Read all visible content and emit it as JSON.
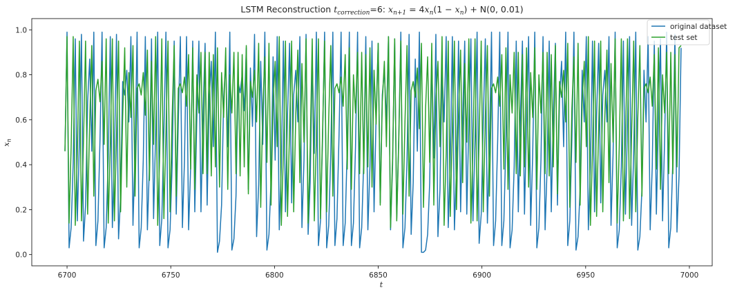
{
  "chart_data": {
    "type": "line",
    "title": {
      "prefix": "LSTM Reconstruction ",
      "t": "t",
      "subscript": "correction",
      "eq_value": "=6: ",
      "x": "x",
      "sub_n1": "n+1",
      "mid": " = 4",
      "x2": "x",
      "sub_n": "n",
      "paren_open": "(1 − ",
      "x3": "x",
      "sub_n2": "n",
      "tail": ") + N(0, 0.01)"
    },
    "xlabel": "t",
    "ylabel": {
      "base": "x",
      "sub": "n"
    },
    "xlim": [
      6683,
      7011
    ],
    "ylim": [
      -0.05,
      1.05
    ],
    "xticks": [
      6700,
      6750,
      6800,
      6850,
      6900,
      6950,
      7000
    ],
    "yticks": [
      "0.0",
      "0.2",
      "0.4",
      "0.6",
      "0.8",
      "1.0"
    ],
    "yticks_values": [
      0.0,
      0.2,
      0.4,
      0.6,
      0.8,
      1.0
    ],
    "legend_position": "top-right",
    "x": {
      "start": 6699,
      "end": 6996
    },
    "series": [
      {
        "name": "original dataset",
        "color": "#1f77b4",
        "values": [
          0.46,
          0.99,
          0.03,
          0.12,
          0.41,
          0.96,
          0.15,
          0.5,
          0.98,
          0.06,
          0.22,
          0.68,
          0.87,
          0.46,
          0.99,
          0.04,
          0.15,
          0.51,
          0.99,
          0.03,
          0.12,
          0.43,
          0.97,
          0.12,
          0.43,
          0.98,
          0.07,
          0.26,
          0.77,
          0.71,
          0.82,
          0.59,
          0.97,
          0.13,
          0.45,
          0.99,
          0.03,
          0.12,
          0.42,
          0.97,
          0.11,
          0.4,
          0.96,
          0.16,
          0.54,
          0.99,
          0.04,
          0.16,
          0.54,
          0.99,
          0.03,
          0.11,
          0.39,
          0.95,
          0.18,
          0.59,
          0.97,
          0.12,
          0.42,
          0.97,
          0.11,
          0.39,
          0.95,
          0.19,
          0.61,
          0.95,
          0.19,
          0.62,
          0.94,
          0.22,
          0.69,
          0.86,
          0.48,
          0.99,
          0.01,
          0.06,
          0.22,
          0.69,
          0.86,
          0.48,
          0.99,
          0.02,
          0.07,
          0.26,
          0.77,
          0.72,
          0.8,
          0.64,
          0.92,
          0.29,
          0.83,
          0.57,
          0.98,
          0.08,
          0.31,
          0.86,
          0.49,
          0.99,
          0.02,
          0.09,
          0.33,
          0.88,
          0.42,
          0.97,
          0.11,
          0.39,
          0.95,
          0.19,
          0.62,
          0.94,
          0.23,
          0.71,
          0.82,
          0.59,
          0.97,
          0.12,
          0.42,
          0.98,
          0.09,
          0.32,
          0.87,
          0.45,
          0.99,
          0.04,
          0.15,
          0.51,
          0.99,
          0.03,
          0.13,
          0.45,
          0.99,
          0.04,
          0.16,
          0.53,
          0.99,
          0.04,
          0.14,
          0.48,
          0.99,
          0.04,
          0.14,
          0.48,
          0.99,
          0.03,
          0.12,
          0.42,
          0.97,
          0.11,
          0.39,
          0.95,
          0.19,
          0.62,
          0.94,
          0.23,
          0.71,
          0.82,
          0.59,
          0.97,
          0.11,
          0.4,
          0.96,
          0.16,
          0.53,
          0.99,
          0.03,
          0.12,
          0.42,
          0.98,
          0.09,
          0.32,
          0.87,
          0.46,
          0.99,
          0.01,
          0.01,
          0.02,
          0.09,
          0.32,
          0.88,
          0.43,
          0.98,
          0.08,
          0.29,
          0.82,
          0.59,
          0.97,
          0.12,
          0.42,
          0.97,
          0.11,
          0.39,
          0.95,
          0.19,
          0.61,
          0.95,
          0.18,
          0.59,
          0.96,
          0.15,
          0.51,
          0.99,
          0.05,
          0.18,
          0.59,
          0.96,
          0.14,
          0.48,
          0.99,
          0.04,
          0.15,
          0.51,
          0.99,
          0.04,
          0.15,
          0.51,
          0.99,
          0.03,
          0.11,
          0.39,
          0.95,
          0.19,
          0.61,
          0.95,
          0.18,
          0.59,
          0.97,
          0.13,
          0.45,
          0.99,
          0.03,
          0.12,
          0.42,
          0.97,
          0.11,
          0.39,
          0.95,
          0.19,
          0.62,
          0.94,
          0.22,
          0.69,
          0.86,
          0.48,
          0.99,
          0.04,
          0.15,
          0.51,
          0.99,
          0.02,
          0.08,
          0.29,
          0.82,
          0.59,
          0.97,
          0.11,
          0.39,
          0.95,
          0.19,
          0.62,
          0.94,
          0.23,
          0.71,
          0.82,
          0.59,
          0.97,
          0.13,
          0.45,
          0.99,
          0.03,
          0.11,
          0.39,
          0.95,
          0.18,
          0.59,
          0.97,
          0.13,
          0.45,
          0.99,
          0.02,
          0.08,
          0.29,
          0.82,
          0.59,
          0.97,
          0.11,
          0.39,
          0.95,
          0.18,
          0.59,
          0.96,
          0.15,
          0.51,
          0.99,
          0.03,
          0.12,
          0.42,
          0.98,
          0.1,
          0.35,
          0.92
        ]
      },
      {
        "name": "test set",
        "color": "#2ca02c",
        "values": [
          0.46,
          0.97,
          0.14,
          0.48,
          0.97,
          0.13,
          0.45,
          0.95,
          0.15,
          0.51,
          0.95,
          0.18,
          0.59,
          0.93,
          0.26,
          0.73,
          0.78,
          0.68,
          0.86,
          0.49,
          0.96,
          0.14,
          0.48,
          0.96,
          0.15,
          0.52,
          0.95,
          0.19,
          0.61,
          0.92,
          0.3,
          0.81,
          0.61,
          0.93,
          0.26,
          0.74,
          0.76,
          0.71,
          0.81,
          0.62,
          0.91,
          0.33,
          0.86,
          0.49,
          0.97,
          0.13,
          0.46,
          0.96,
          0.16,
          0.54,
          0.95,
          0.19,
          0.61,
          0.93,
          0.26,
          0.74,
          0.76,
          0.72,
          0.79,
          0.66,
          0.89,
          0.38,
          0.92,
          0.29,
          0.8,
          0.63,
          0.9,
          0.36,
          0.9,
          0.36,
          0.9,
          0.35,
          0.89,
          0.39,
          0.92,
          0.3,
          0.81,
          0.61,
          0.92,
          0.29,
          0.8,
          0.63,
          0.9,
          0.36,
          0.9,
          0.35,
          0.89,
          0.39,
          0.93,
          0.27,
          0.77,
          0.7,
          0.82,
          0.59,
          0.94,
          0.21,
          0.65,
          0.88,
          0.41,
          0.94,
          0.22,
          0.68,
          0.86,
          0.48,
          0.97,
          0.13,
          0.45,
          0.95,
          0.17,
          0.56,
          0.95,
          0.19,
          0.62,
          0.91,
          0.32,
          0.85,
          0.5,
          0.96,
          0.14,
          0.48,
          0.96,
          0.15,
          0.51,
          0.96,
          0.16,
          0.54,
          0.95,
          0.19,
          0.61,
          0.93,
          0.26,
          0.74,
          0.76,
          0.72,
          0.79,
          0.66,
          0.89,
          0.38,
          0.92,
          0.29,
          0.8,
          0.63,
          0.9,
          0.36,
          0.9,
          0.36,
          0.89,
          0.39,
          0.92,
          0.3,
          0.82,
          0.58,
          0.94,
          0.22,
          0.68,
          0.86,
          0.48,
          0.97,
          0.12,
          0.43,
          0.96,
          0.15,
          0.51,
          0.95,
          0.18,
          0.59,
          0.93,
          0.26,
          0.73,
          0.77,
          0.7,
          0.83,
          0.56,
          0.94,
          0.21,
          0.65,
          0.88,
          0.41,
          0.94,
          0.22,
          0.68,
          0.86,
          0.48,
          0.97,
          0.13,
          0.45,
          0.95,
          0.17,
          0.56,
          0.95,
          0.2,
          0.62,
          0.91,
          0.32,
          0.85,
          0.5,
          0.96,
          0.14,
          0.48,
          0.96,
          0.15,
          0.52,
          0.95,
          0.19,
          0.61,
          0.93,
          0.26,
          0.74,
          0.76,
          0.72,
          0.79,
          0.66,
          0.89,
          0.38,
          0.92,
          0.29,
          0.8,
          0.63,
          0.9,
          0.36,
          0.9,
          0.35,
          0.89,
          0.39,
          0.92,
          0.3,
          0.81,
          0.61,
          0.92,
          0.29,
          0.8,
          0.63,
          0.9,
          0.36,
          0.9,
          0.35,
          0.89,
          0.39,
          0.93,
          0.27,
          0.77,
          0.7,
          0.82,
          0.59,
          0.94,
          0.21,
          0.65,
          0.88,
          0.41,
          0.94,
          0.22,
          0.68,
          0.86,
          0.48,
          0.97,
          0.13,
          0.45,
          0.95,
          0.17,
          0.56,
          0.95,
          0.19,
          0.62,
          0.91,
          0.32,
          0.85,
          0.5,
          0.96,
          0.14,
          0.48,
          0.96,
          0.15,
          0.51,
          0.96,
          0.16,
          0.54,
          0.95,
          0.19,
          0.61,
          0.93,
          0.26,
          0.74,
          0.76,
          0.72,
          0.79,
          0.66,
          0.89,
          0.38,
          0.92,
          0.29,
          0.8,
          0.63,
          0.9,
          0.36,
          0.9,
          0.36,
          0.89,
          0.39,
          0.92,
          0.93
        ]
      }
    ]
  }
}
